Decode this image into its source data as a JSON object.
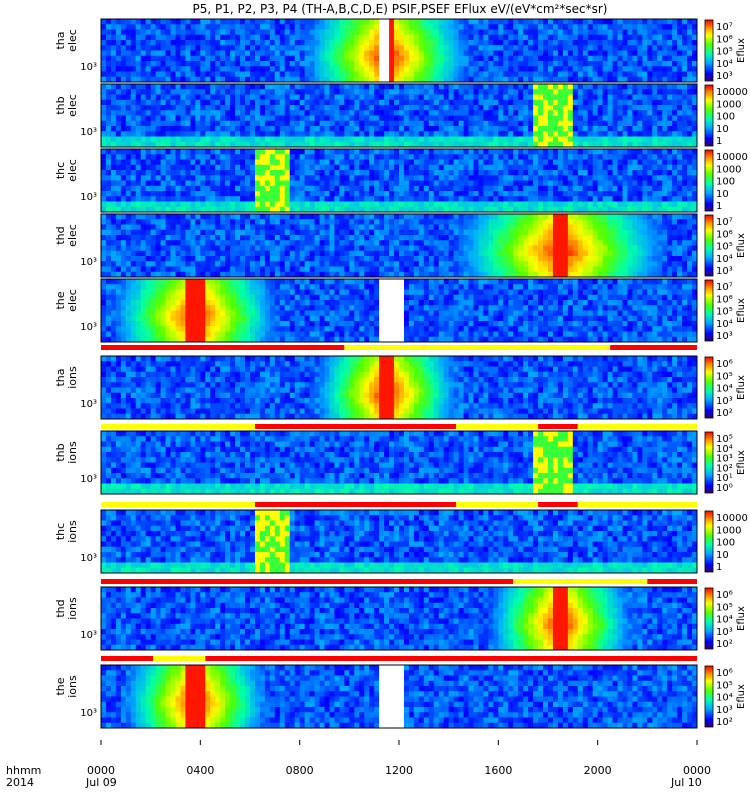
{
  "title": "P5, P1, P2, P3, P4  (TH-A,B,C,D,E) PSIF,PSEF EFlux eV/(eV*cm²*sec*sr)",
  "chart_data": {
    "type": "heatmap",
    "title": "P5, P1, P2, P3, P4  (TH-A,B,C,D,E) PSIF,PSEF EFlux eV/(eV*cm²*sec*sr)",
    "x_axis": {
      "label_lines": [
        "hhmm",
        "2014"
      ],
      "ticks": [
        "0000",
        "0400",
        "0800",
        "1200",
        "1600",
        "2000",
        "0000"
      ],
      "tick_values_hours": [
        0,
        4,
        8,
        12,
        16,
        20,
        24
      ],
      "date_labels": [
        "Jul 09",
        "Jul 10"
      ],
      "range_hours": [
        0,
        24
      ]
    },
    "colorscale": "rainbow (purple-blue-cyan-green-yellow-red)",
    "panels": [
      {
        "label": "tha elec",
        "ylabel": [
          "tha",
          "elec"
        ],
        "ytick": "10³",
        "cbar_label": "Eflux",
        "cbar_ticks": [
          "10⁷",
          "10⁶",
          "10⁵",
          "10⁴",
          "10³"
        ],
        "features": [
          {
            "type": "plasmasheet_band",
            "center_hours": 11.5,
            "width_hours": 4.0
          },
          {
            "type": "gap",
            "start_hours": 11.2,
            "end_hours": 11.5
          }
        ]
      },
      {
        "label": "thb elec",
        "ylabel": [
          "thb",
          "elec"
        ],
        "ytick": "10³",
        "cbar_label": "",
        "cbar_ticks": [
          "10000",
          "1000",
          "100",
          "10",
          "1"
        ],
        "features": [
          {
            "type": "noise_patch",
            "start_hours": 17.5,
            "end_hours": 19.0
          }
        ]
      },
      {
        "label": "thc elec",
        "ylabel": [
          "thc",
          "elec"
        ],
        "ytick": "10³",
        "cbar_label": "",
        "cbar_ticks": [
          "10000",
          "1000",
          "100",
          "10",
          "1"
        ],
        "features": [
          {
            "type": "noise_patch",
            "start_hours": 6.2,
            "end_hours": 7.5
          }
        ]
      },
      {
        "label": "thd elec",
        "ylabel": [
          "thd",
          "elec"
        ],
        "ytick": "10³",
        "cbar_label": "Eflux",
        "cbar_ticks": [
          "10⁷",
          "10⁶",
          "10⁵",
          "10⁴",
          "10³"
        ],
        "features": [
          {
            "type": "plasmasheet_band",
            "center_hours": 18.5,
            "width_hours": 5.0
          }
        ]
      },
      {
        "label": "the elec",
        "ylabel": [
          "the",
          "elec"
        ],
        "ytick": "10³",
        "cbar_label": "Eflux",
        "cbar_ticks": [
          "10⁷",
          "10⁶",
          "10⁵",
          "10⁴",
          "10³"
        ],
        "features": [
          {
            "type": "plasmasheet_band",
            "center_hours": 3.8,
            "width_hours": 4.0
          },
          {
            "type": "gap",
            "start_hours": 11.3,
            "end_hours": 12.1
          }
        ]
      },
      {
        "label": "tha ions",
        "ylabel": [
          "tha",
          "ions"
        ],
        "ytick": "10³",
        "cbar_label": "Eflux",
        "cbar_ticks": [
          "10⁶",
          "10⁵",
          "10⁴",
          "10³",
          "10²"
        ],
        "features": [
          {
            "type": "plasmasheet_band",
            "center_hours": 11.5,
            "width_hours": 3.5
          }
        ]
      },
      {
        "label": "thb ions",
        "ylabel": [
          "thb",
          "ions"
        ],
        "ytick": "10³",
        "cbar_label": "Eflux",
        "cbar_ticks": [
          "10⁵",
          "10⁴",
          "10³",
          "10²",
          "10¹",
          "10⁰"
        ],
        "features": [
          {
            "type": "noise_patch",
            "start_hours": 17.5,
            "end_hours": 19.0
          }
        ]
      },
      {
        "label": "thc ions",
        "ylabel": [
          "thc",
          "ions"
        ],
        "ytick": "10³",
        "cbar_label": "",
        "cbar_ticks": [
          "10000",
          "1000",
          "100",
          "10",
          "1"
        ],
        "features": [
          {
            "type": "noise_patch",
            "start_hours": 6.2,
            "end_hours": 7.5
          }
        ]
      },
      {
        "label": "thd ions",
        "ylabel": [
          "thd",
          "ions"
        ],
        "ytick": "10³",
        "cbar_label": "Eflux",
        "cbar_ticks": [
          "10⁶",
          "10⁵",
          "10⁴",
          "10³",
          "10²"
        ],
        "features": [
          {
            "type": "plasmasheet_band",
            "center_hours": 18.5,
            "width_hours": 3.5
          }
        ]
      },
      {
        "label": "the ions",
        "ylabel": [
          "the",
          "ions"
        ],
        "ytick": "10³",
        "cbar_label": "Eflux",
        "cbar_ticks": [
          "10⁶",
          "10⁵",
          "10⁴",
          "10³",
          "10²"
        ],
        "features": [
          {
            "type": "plasmasheet_band",
            "center_hours": 3.8,
            "width_hours": 3.5
          },
          {
            "type": "gap",
            "start_hours": 11.3,
            "end_hours": 12.1
          }
        ]
      }
    ],
    "status_bars": [
      {
        "after_panel": "the elec",
        "segments": [
          {
            "start_hours": 0,
            "end_hours": 9.8,
            "color": "#ff0000"
          },
          {
            "start_hours": 9.8,
            "end_hours": 20.5,
            "color": "#ffff00"
          },
          {
            "start_hours": 20.5,
            "end_hours": 24,
            "color": "#ff0000"
          }
        ]
      },
      {
        "after_panel": "tha ions",
        "segments": [
          {
            "start_hours": 0,
            "end_hours": 6.2,
            "color": "#ffff00"
          },
          {
            "start_hours": 6.2,
            "end_hours": 14.3,
            "color": "#ff0000"
          },
          {
            "start_hours": 14.3,
            "end_hours": 17.6,
            "color": "#ffff00"
          },
          {
            "start_hours": 17.6,
            "end_hours": 19.2,
            "color": "#ff0000"
          },
          {
            "start_hours": 19.2,
            "end_hours": 24,
            "color": "#ffff00"
          }
        ]
      },
      {
        "after_panel": "thb ions",
        "segments": [
          {
            "start_hours": 0,
            "end_hours": 6.2,
            "color": "#ffff00"
          },
          {
            "start_hours": 6.2,
            "end_hours": 14.3,
            "color": "#ff0000"
          },
          {
            "start_hours": 14.3,
            "end_hours": 17.6,
            "color": "#ffff00"
          },
          {
            "start_hours": 17.6,
            "end_hours": 19.2,
            "color": "#ff0000"
          },
          {
            "start_hours": 19.2,
            "end_hours": 24,
            "color": "#ffff00"
          }
        ]
      },
      {
        "after_panel": "thc ions",
        "segments": [
          {
            "start_hours": 0,
            "end_hours": 16.6,
            "color": "#ff0000"
          },
          {
            "start_hours": 16.6,
            "end_hours": 22.0,
            "color": "#ffff00"
          },
          {
            "start_hours": 22.0,
            "end_hours": 24,
            "color": "#ff0000"
          }
        ]
      },
      {
        "after_panel": "thd ions",
        "segments": [
          {
            "start_hours": 0,
            "end_hours": 2.1,
            "color": "#ff0000"
          },
          {
            "start_hours": 2.1,
            "end_hours": 4.2,
            "color": "#ffff00"
          },
          {
            "start_hours": 4.2,
            "end_hours": 24,
            "color": "#ff0000"
          }
        ]
      }
    ]
  }
}
